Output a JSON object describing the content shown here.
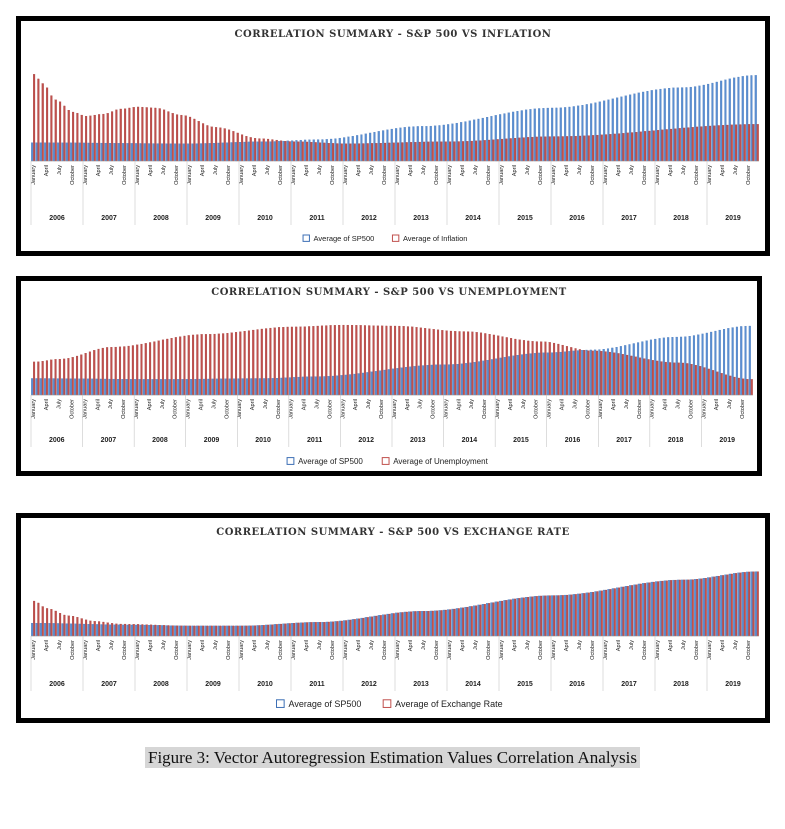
{
  "figure_caption": "Figure 3: Vector Autoregression Estimation Values Correlation Analysis",
  "colors": {
    "sp500": "#5b8fd1",
    "sp500_edge": "#3d6fb5",
    "second": "#c0504d",
    "second_edge": "#9c3431",
    "border": "#000000"
  },
  "chart_data": [
    {
      "type": "bar",
      "title": "CORRELATION SUMMARY - S&P 500 VS INFLATION",
      "years": [
        "2006",
        "2007",
        "2008",
        "2009",
        "2010",
        "2011",
        "2012",
        "2013",
        "2014",
        "2015",
        "2016",
        "2017",
        "2018",
        "2019"
      ],
      "months": [
        "January",
        "April",
        "July",
        "October"
      ],
      "series": [
        {
          "name": "Average of SP500",
          "role": "sp500",
          "knots": [
            [
              0,
              0.18
            ],
            [
              36,
              0.17
            ],
            [
              54,
              0.19
            ],
            [
              66,
              0.21
            ],
            [
              90,
              0.34
            ],
            [
              120,
              0.52
            ],
            [
              150,
              0.72
            ],
            [
              167,
              0.84
            ]
          ]
        },
        {
          "name": "Average of Inflation",
          "role": "second",
          "knots": [
            [
              0,
              0.85
            ],
            [
              2,
              0.76
            ],
            [
              5,
              0.6
            ],
            [
              9,
              0.48
            ],
            [
              12,
              0.44
            ],
            [
              16,
              0.46
            ],
            [
              20,
              0.51
            ],
            [
              24,
              0.53
            ],
            [
              28,
              0.52
            ],
            [
              34,
              0.45
            ],
            [
              42,
              0.33
            ],
            [
              52,
              0.22
            ],
            [
              60,
              0.19
            ],
            [
              72,
              0.17
            ],
            [
              96,
              0.19
            ],
            [
              120,
              0.24
            ],
            [
              167,
              0.36
            ]
          ]
        }
      ],
      "legend_position": "bottom"
    },
    {
      "type": "bar",
      "title": "CORRELATION SUMMARY - S&P 500 VS UNEMPLOYMENT",
      "years": [
        "2006",
        "2007",
        "2008",
        "2009",
        "2010",
        "2011",
        "2012",
        "2013",
        "2014",
        "2015",
        "2016",
        "2017",
        "2018",
        "2019"
      ],
      "months": [
        "January",
        "April",
        "July",
        "October"
      ],
      "series": [
        {
          "name": "Average of SP500",
          "role": "sp500",
          "knots": [
            [
              0,
              0.18
            ],
            [
              30,
              0.17
            ],
            [
              54,
              0.18
            ],
            [
              66,
              0.2
            ],
            [
              96,
              0.33
            ],
            [
              120,
              0.46
            ],
            [
              130,
              0.49
            ],
            [
              150,
              0.63
            ],
            [
              167,
              0.75
            ]
          ]
        },
        {
          "name": "Average of Unemployment",
          "role": "second",
          "knots": [
            [
              0,
              0.36
            ],
            [
              6,
              0.39
            ],
            [
              18,
              0.52
            ],
            [
              40,
              0.66
            ],
            [
              60,
              0.74
            ],
            [
              72,
              0.76
            ],
            [
              84,
              0.75
            ],
            [
              100,
              0.69
            ],
            [
              118,
              0.58
            ],
            [
              130,
              0.48
            ],
            [
              150,
              0.35
            ],
            [
              167,
              0.17
            ]
          ]
        }
      ],
      "legend_position": "bottom"
    },
    {
      "type": "bar",
      "title": "CORRELATION SUMMARY - S&P 500 VS EXCHANGE RATE",
      "years": [
        "2006",
        "2007",
        "2008",
        "2009",
        "2010",
        "2011",
        "2012",
        "2013",
        "2014",
        "2015",
        "2016",
        "2017",
        "2018",
        "2019"
      ],
      "months": [
        "January",
        "April",
        "July",
        "October"
      ],
      "series": [
        {
          "name": "Average of SP500",
          "role": "sp500",
          "knots": [
            [
              0,
              0.14
            ],
            [
              24,
              0.12
            ],
            [
              36,
              0.11
            ],
            [
              48,
              0.11
            ],
            [
              66,
              0.15
            ],
            [
              90,
              0.27
            ],
            [
              120,
              0.44
            ],
            [
              150,
              0.61
            ],
            [
              167,
              0.7
            ]
          ]
        },
        {
          "name": "Average of Exchange Rate",
          "role": "second",
          "knots": [
            [
              0,
              0.38
            ],
            [
              3,
              0.3
            ],
            [
              8,
              0.22
            ],
            [
              14,
              0.16
            ],
            [
              20,
              0.13
            ],
            [
              36,
              0.11
            ],
            [
              48,
              0.11
            ],
            [
              66,
              0.15
            ],
            [
              90,
              0.27
            ],
            [
              120,
              0.44
            ],
            [
              150,
              0.61
            ],
            [
              167,
              0.7
            ]
          ]
        }
      ],
      "legend_position": "bottom"
    }
  ]
}
